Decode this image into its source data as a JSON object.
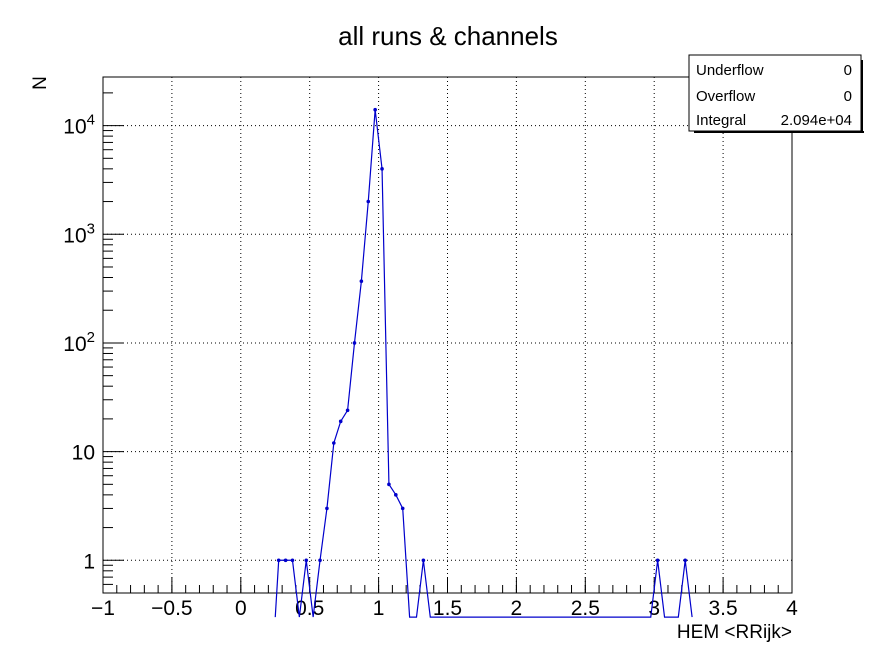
{
  "chart_data": {
    "type": "line",
    "title": "all runs & channels",
    "xlabel": "HEM <RRijk>",
    "ylabel": "N",
    "xlim": [
      -1,
      4
    ],
    "ylim": [
      0.5,
      28000
    ],
    "y_scale": "log",
    "grid": true,
    "x_ticks": [
      "−1",
      "−0.5",
      "0",
      "0.5",
      "1",
      "1.5",
      "2",
      "2.5",
      "3",
      "3.5",
      "4"
    ],
    "y_ticks": [
      {
        "value": 1,
        "base": "1",
        "exp": ""
      },
      {
        "value": 10,
        "base": "10",
        "exp": ""
      },
      {
        "value": 100,
        "base": "10",
        "exp": "2"
      },
      {
        "value": 1000,
        "base": "10",
        "exp": "3"
      },
      {
        "value": 10000,
        "base": "10",
        "exp": "4"
      }
    ],
    "series": [
      {
        "color": "#0000cc",
        "points": [
          [
            0.25,
            0.3
          ],
          [
            0.275,
            1
          ],
          [
            0.325,
            1
          ],
          [
            0.375,
            1
          ],
          [
            0.425,
            0.3
          ],
          [
            0.475,
            1
          ],
          [
            0.525,
            0.3
          ],
          [
            0.575,
            1
          ],
          [
            0.625,
            3
          ],
          [
            0.675,
            12
          ],
          [
            0.725,
            19
          ],
          [
            0.775,
            24
          ],
          [
            0.825,
            100
          ],
          [
            0.875,
            370
          ],
          [
            0.925,
            2000
          ],
          [
            0.975,
            14000
          ],
          [
            1.025,
            4000
          ],
          [
            1.075,
            5
          ],
          [
            1.125,
            4
          ],
          [
            1.175,
            3
          ],
          [
            1.225,
            0.3
          ],
          [
            1.275,
            0.3
          ],
          [
            1.325,
            1
          ],
          [
            1.375,
            0.3
          ],
          [
            2.975,
            0.3
          ],
          [
            3.025,
            1
          ],
          [
            3.075,
            0.3
          ],
          [
            3.175,
            0.3
          ],
          [
            3.225,
            1
          ],
          [
            3.275,
            0.3
          ]
        ]
      }
    ],
    "stats": [
      {
        "label": "Underflow",
        "value": "0"
      },
      {
        "label": "Overflow",
        "value": "0"
      },
      {
        "label": "Integral",
        "value": "2.094e+04"
      }
    ]
  }
}
